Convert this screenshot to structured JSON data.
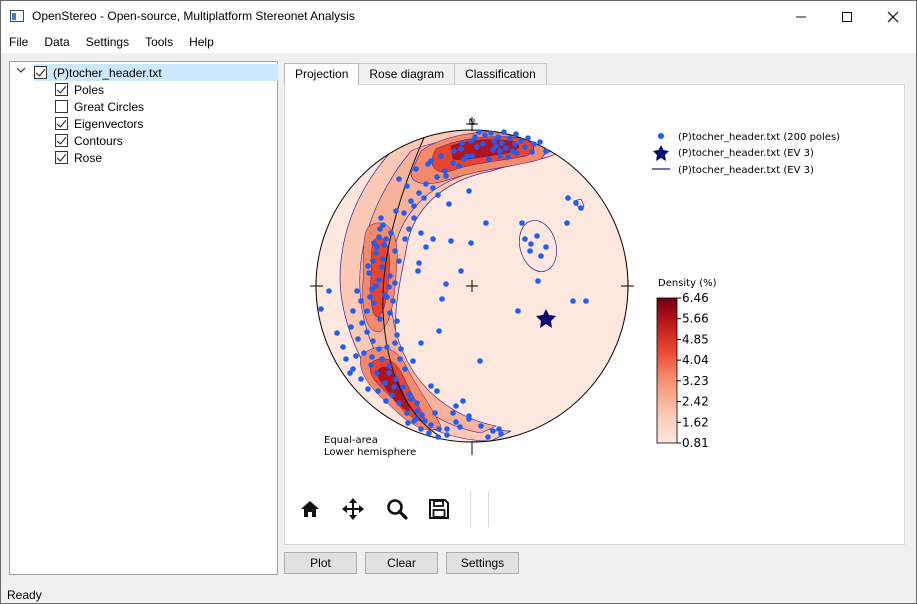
{
  "window": {
    "title": "OpenStereo - Open-source, Multiplatform Stereonet Analysis"
  },
  "menu": [
    "File",
    "Data",
    "Settings",
    "Tools",
    "Help"
  ],
  "tree": {
    "root": {
      "label": "(P)tocher_header.txt",
      "checked": true,
      "expanded": true
    },
    "children": [
      {
        "label": "Poles",
        "checked": true
      },
      {
        "label": "Great Circles",
        "checked": false
      },
      {
        "label": "Eigenvectors",
        "checked": true
      },
      {
        "label": "Contours",
        "checked": true
      },
      {
        "label": "Rose",
        "checked": true
      }
    ]
  },
  "tabs": [
    {
      "label": "Projection",
      "active": true
    },
    {
      "label": "Rose diagram",
      "active": false
    },
    {
      "label": "Classification",
      "active": false
    }
  ],
  "plot": {
    "north_label": "N",
    "projection_text": [
      "Equal-area",
      "Lower hemisphere"
    ],
    "legend": [
      {
        "label": "(P)tocher_header.txt (200 poles)",
        "marker": "dot",
        "color": "#1f5ff5"
      },
      {
        "label": "(P)tocher_header.txt (EV 3)",
        "marker": "star",
        "color": "#0c0a6e"
      },
      {
        "label": "(P)tocher_header.txt (EV 3)",
        "marker": "line",
        "color": "#1a1a8a"
      }
    ],
    "colorbar": {
      "title": "Density (%)",
      "ticks": [
        "6.46",
        "5.66",
        "4.85",
        "4.04",
        "3.23",
        "2.42",
        "1.62",
        "0.81"
      ]
    },
    "colors": {
      "pole": "#1f5ff5",
      "eigenvector": "#0c0a6e",
      "contour_line": "#3a1a8a",
      "density_low": "#fde7de",
      "density_high": "#7b0012"
    }
  },
  "toolbar": [
    "home-icon",
    "pan-icon",
    "zoom-icon",
    "save-icon"
  ],
  "buttons": {
    "plot": "Plot",
    "clear": "Clear",
    "settings": "Settings"
  },
  "status": "Ready"
}
